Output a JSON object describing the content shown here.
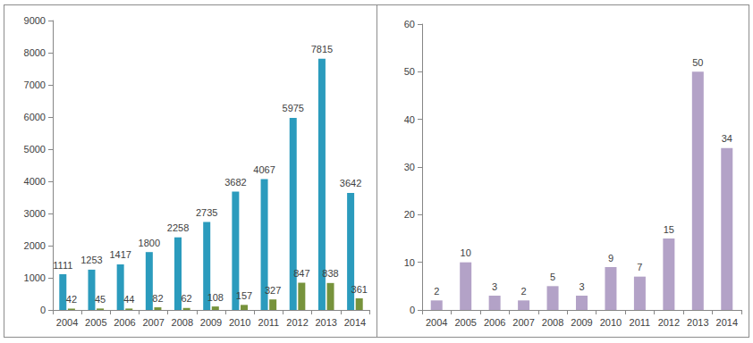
{
  "chart_data": [
    {
      "type": "bar",
      "categories": [
        "2004",
        "2005",
        "2006",
        "2007",
        "2008",
        "2009",
        "2010",
        "2011",
        "2012",
        "2013",
        "2014"
      ],
      "series": [
        {
          "color": "#2b9bbd",
          "values": [
            1111,
            1253,
            1417,
            1800,
            2258,
            2735,
            3682,
            4067,
            5975,
            7815,
            3642
          ]
        },
        {
          "color": "#77933c",
          "values": [
            42,
            45,
            44,
            82,
            62,
            108,
            157,
            327,
            847,
            838,
            361
          ]
        }
      ],
      "ylim": [
        0,
        9000
      ],
      "yticks": [
        0,
        1000,
        2000,
        3000,
        4000,
        5000,
        6000,
        7000,
        8000,
        9000
      ],
      "grid": false,
      "data_labels": true
    },
    {
      "type": "bar",
      "categories": [
        "2004",
        "2005",
        "2006",
        "2007",
        "2008",
        "2009",
        "2010",
        "2011",
        "2012",
        "2013",
        "2014"
      ],
      "series": [
        {
          "color": "#b3a2c7",
          "values": [
            2,
            10,
            3,
            2,
            5,
            3,
            9,
            7,
            15,
            50,
            34
          ]
        }
      ],
      "ylim": [
        0,
        60
      ],
      "yticks": [
        0,
        10,
        20,
        30,
        40,
        50,
        60
      ],
      "grid": false,
      "data_labels": true
    }
  ]
}
